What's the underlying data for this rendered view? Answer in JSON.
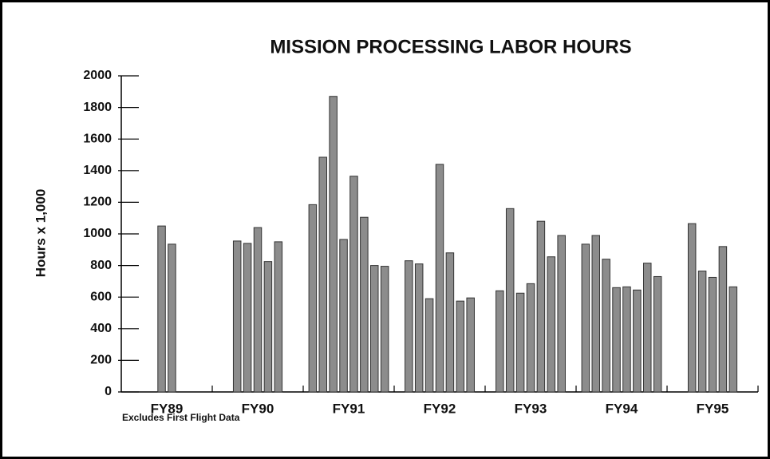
{
  "chart_data": {
    "type": "bar",
    "title": "MISSION PROCESSING LABOR HOURS",
    "y_label": "Hours x 1,000",
    "note": "Excludes First Flight Data",
    "color": "#8c8c8c",
    "ylim": [
      0,
      2000
    ],
    "yticks": [
      0,
      200,
      400,
      600,
      800,
      1000,
      1200,
      1400,
      1600,
      1800,
      2000
    ],
    "groups": [
      {
        "label": "FY89",
        "values": [
          1050,
          935
        ]
      },
      {
        "label": "FY90",
        "values": [
          955,
          940,
          1040,
          825,
          950
        ]
      },
      {
        "label": "FY91",
        "values": [
          1185,
          1485,
          1870,
          965,
          1365,
          1105,
          800,
          795
        ]
      },
      {
        "label": "FY92",
        "values": [
          830,
          810,
          590,
          1440,
          880,
          575,
          595
        ]
      },
      {
        "label": "FY93",
        "values": [
          640,
          1160,
          625,
          685,
          1080,
          855,
          990
        ]
      },
      {
        "label": "FY94",
        "values": [
          935,
          990,
          840,
          660,
          665,
          645,
          815,
          730
        ]
      },
      {
        "label": "FY95",
        "values": [
          1065,
          765,
          725,
          920,
          665
        ]
      }
    ]
  }
}
